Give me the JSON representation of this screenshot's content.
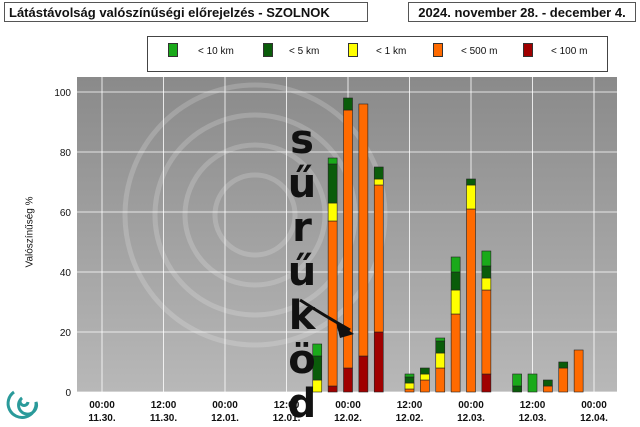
{
  "header": {
    "title_left": "Látástávolság valószínűségi előrejelzés - SZOLNOK",
    "title_right": "2024. november 28. - december 4."
  },
  "chart_data": {
    "type": "bar",
    "stacked": true,
    "ylabel": "Valószínűség %",
    "ylim": [
      0,
      105
    ],
    "yticks": [
      0,
      20,
      40,
      60,
      80,
      100
    ],
    "grid": true,
    "legend_position": "top",
    "x_ticks": [
      {
        "time": "00:00",
        "date": "11.30."
      },
      {
        "time": "12:00",
        "date": "11.30."
      },
      {
        "time": "00:00",
        "date": "12.01."
      },
      {
        "time": "12:00",
        "date": "12.01."
      },
      {
        "time": "00:00",
        "date": "12.02."
      },
      {
        "time": "12:00",
        "date": "12.02."
      },
      {
        "time": "00:00",
        "date": "12.03."
      },
      {
        "time": "12:00",
        "date": "12.03."
      },
      {
        "time": "00:00",
        "date": "12.04."
      }
    ],
    "x": [
      "12.01. 18:00",
      "12.01. 21:00",
      "12.02. 00:00",
      "12.02. 03:00",
      "12.02. 06:00",
      "12.02. 09:00",
      "12.02. 12:00",
      "12.02. 15:00",
      "12.02. 18:00",
      "12.02. 21:00",
      "12.03. 00:00",
      "12.03. 03:00",
      "12.03. 06:00",
      "12.03. 09:00",
      "12.03. 12:00",
      "12.03. 15:00",
      "12.03. 18:00",
      "12.03. 21:00"
    ],
    "categories_vis": [
      "< 10 km",
      "< 5 km",
      "< 1 km",
      "< 500 m",
      "< 100 m"
    ],
    "series": [
      {
        "name": "< 100 m",
        "color": "#a00000",
        "values": [
          0,
          2,
          8,
          12,
          20,
          0,
          0,
          0,
          0,
          0,
          0,
          6,
          0,
          0,
          0,
          0,
          0,
          0
        ]
      },
      {
        "name": "< 500 m",
        "color": "#ff6a00",
        "values": [
          0,
          55,
          86,
          84,
          49,
          0,
          1,
          4,
          8,
          26,
          61,
          28,
          0,
          0,
          0,
          2,
          8,
          14
        ]
      },
      {
        "name": "< 1 km",
        "color": "#ffff00",
        "values": [
          4,
          6,
          0,
          0,
          2,
          0,
          2,
          2,
          5,
          8,
          8,
          4,
          0,
          0,
          0,
          0,
          0,
          0
        ]
      },
      {
        "name": "< 5 km",
        "color": "#0a5c0a",
        "values": [
          8,
          13,
          4,
          0,
          4,
          0,
          2,
          2,
          4,
          6,
          2,
          4,
          0,
          2,
          0,
          2,
          2,
          0
        ]
      },
      {
        "name": "< 10 km",
        "color": "#1aaa1a",
        "values": [
          4,
          2,
          0,
          0,
          0,
          0,
          1,
          0,
          1,
          5,
          0,
          5,
          0,
          4,
          6,
          0,
          0,
          0
        ]
      }
    ],
    "annotation": [
      "s",
      "ű",
      "r",
      "ű",
      "k",
      "ö",
      "d"
    ]
  },
  "legend": {
    "items": [
      {
        "label": "< 10 km",
        "color": "#1aaa1a"
      },
      {
        "label": "< 5 km",
        "color": "#0a5c0a"
      },
      {
        "label": "< 1 km",
        "color": "#ffff00"
      },
      {
        "label": "< 500 m",
        "color": "#ff6a00"
      },
      {
        "label": "< 100 m",
        "color": "#a00000"
      }
    ]
  },
  "logo": {
    "icon": "swirl-logo-icon",
    "color": "#2a9a9a"
  }
}
